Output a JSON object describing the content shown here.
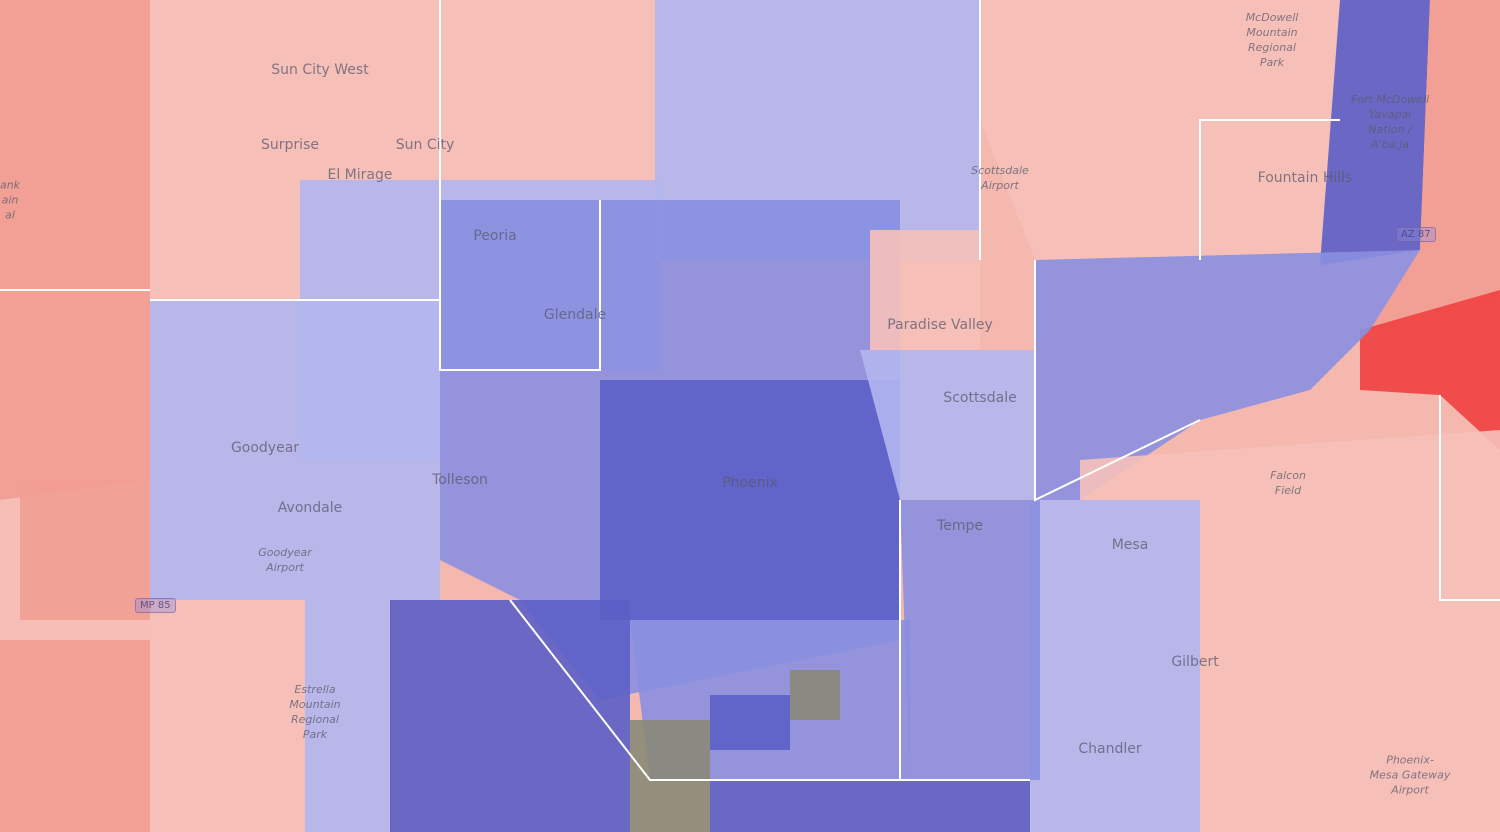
{
  "map": {
    "colors": {
      "strong_dem": "#5b5fc7",
      "dem": "#8a8fe0",
      "lean_dem": "#b3b6f0",
      "lean_rep": "#f6c1ba",
      "rep": "#f29d94",
      "strong_rep": "#f04040",
      "no_data": "#8a8a78",
      "boundary": "#ffffff"
    },
    "places": [
      {
        "name": "Sun City West",
        "kind": "city"
      },
      {
        "name": "Surprise",
        "kind": "city"
      },
      {
        "name": "Sun City",
        "kind": "city"
      },
      {
        "name": "El Mirage",
        "kind": "city"
      },
      {
        "name": "Peoria",
        "kind": "city"
      },
      {
        "name": "Glendale",
        "kind": "city"
      },
      {
        "name": "Goodyear",
        "kind": "city"
      },
      {
        "name": "Avondale",
        "kind": "city"
      },
      {
        "name": "Tolleson",
        "kind": "city"
      },
      {
        "name": "Phoenix",
        "kind": "city"
      },
      {
        "name": "Tempe",
        "kind": "city"
      },
      {
        "name": "Mesa",
        "kind": "city"
      },
      {
        "name": "Gilbert",
        "kind": "city"
      },
      {
        "name": "Chandler",
        "kind": "city"
      },
      {
        "name": "Scottsdale",
        "kind": "city"
      },
      {
        "name": "Paradise Valley",
        "kind": "city"
      },
      {
        "name": "Fountain Hills",
        "kind": "city"
      },
      {
        "name": "Scottsdale\nAirport",
        "kind": "park"
      },
      {
        "name": "McDowell\nMountain\nRegional\nPark",
        "kind": "park"
      },
      {
        "name": "Fort McDowell\nYavapai\nNation /\nA'ba:ja",
        "kind": "park"
      },
      {
        "name": "Estrella\nMountain\nRegional\nPark",
        "kind": "park"
      },
      {
        "name": "Falcon\nField",
        "kind": "park"
      },
      {
        "name": "Goodyear\nAirport",
        "kind": "park"
      },
      {
        "name": "Phoenix-\nMesa Gateway\nAirport",
        "kind": "park"
      },
      {
        "name": "ank\nain\nal",
        "kind": "park"
      }
    ],
    "road_shields": [
      "AZ 87",
      "MP 85"
    ]
  }
}
